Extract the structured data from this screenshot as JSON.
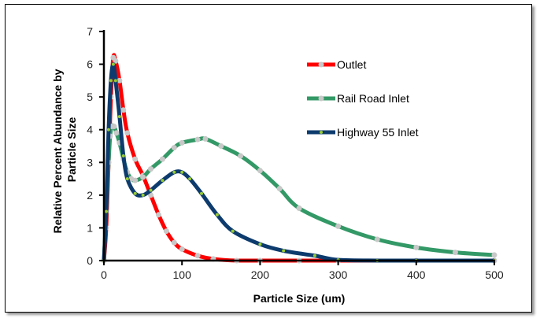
{
  "chart_data": {
    "type": "line",
    "title": "",
    "xlabel": "Particle Size (um)",
    "ylabel": "Relative Percent Abundance by Particle Size",
    "ylabel_lines": [
      "Relative Percent Abundance by",
      "Particle Size"
    ],
    "xlim": [
      0,
      500
    ],
    "ylim": [
      0,
      7
    ],
    "xticks": [
      0,
      100,
      200,
      300,
      400,
      500
    ],
    "yticks": [
      0,
      1,
      2,
      3,
      4,
      5,
      6,
      7
    ],
    "grid": false,
    "legend_position": "top-right",
    "series": [
      {
        "name": "Outlet",
        "color": "#ff0000",
        "marker_color": "#c8c8c8",
        "x": [
          0,
          3,
          6,
          9,
          12,
          15,
          20,
          25,
          30,
          40,
          50,
          60,
          70,
          80,
          90,
          100,
          120,
          140,
          170,
          200,
          250,
          300,
          400,
          500
        ],
        "y": [
          0,
          1,
          3,
          5,
          6.2,
          6.1,
          5.5,
          4.6,
          3.9,
          3.1,
          2.6,
          2.0,
          1.4,
          0.9,
          0.55,
          0.35,
          0.15,
          0.05,
          0,
          0,
          0,
          0,
          0,
          0
        ]
      },
      {
        "name": "Rail Road Inlet",
        "color": "#339966",
        "marker_color": "#c8c8c8",
        "x": [
          0,
          3,
          6,
          8,
          10,
          13,
          16,
          20,
          25,
          30,
          35,
          40,
          50,
          60,
          75,
          90,
          100,
          120,
          130,
          150,
          175,
          200,
          225,
          250,
          300,
          350,
          400,
          450,
          500
        ],
        "y": [
          0,
          1.5,
          3,
          3.8,
          4.1,
          4.1,
          3.9,
          3.6,
          3.1,
          2.7,
          2.5,
          2.45,
          2.55,
          2.8,
          3.1,
          3.45,
          3.6,
          3.7,
          3.72,
          3.5,
          3.2,
          2.75,
          2.2,
          1.6,
          1.05,
          0.65,
          0.4,
          0.25,
          0.17
        ]
      },
      {
        "name": "Highway 55 Inlet",
        "color": "#0d3b6e",
        "marker_color": "#99cc33",
        "x": [
          0,
          3,
          6,
          9,
          12,
          15,
          20,
          25,
          30,
          40,
          50,
          60,
          75,
          90,
          100,
          110,
          125,
          145,
          165,
          200,
          230,
          270,
          300,
          350,
          400,
          500
        ],
        "y": [
          0,
          1.5,
          4,
          5.5,
          6.0,
          5.5,
          4.4,
          3.2,
          2.5,
          2.05,
          2.0,
          2.15,
          2.45,
          2.7,
          2.7,
          2.5,
          2.05,
          1.4,
          0.9,
          0.5,
          0.3,
          0.15,
          0.02,
          0,
          0,
          0
        ]
      }
    ]
  }
}
